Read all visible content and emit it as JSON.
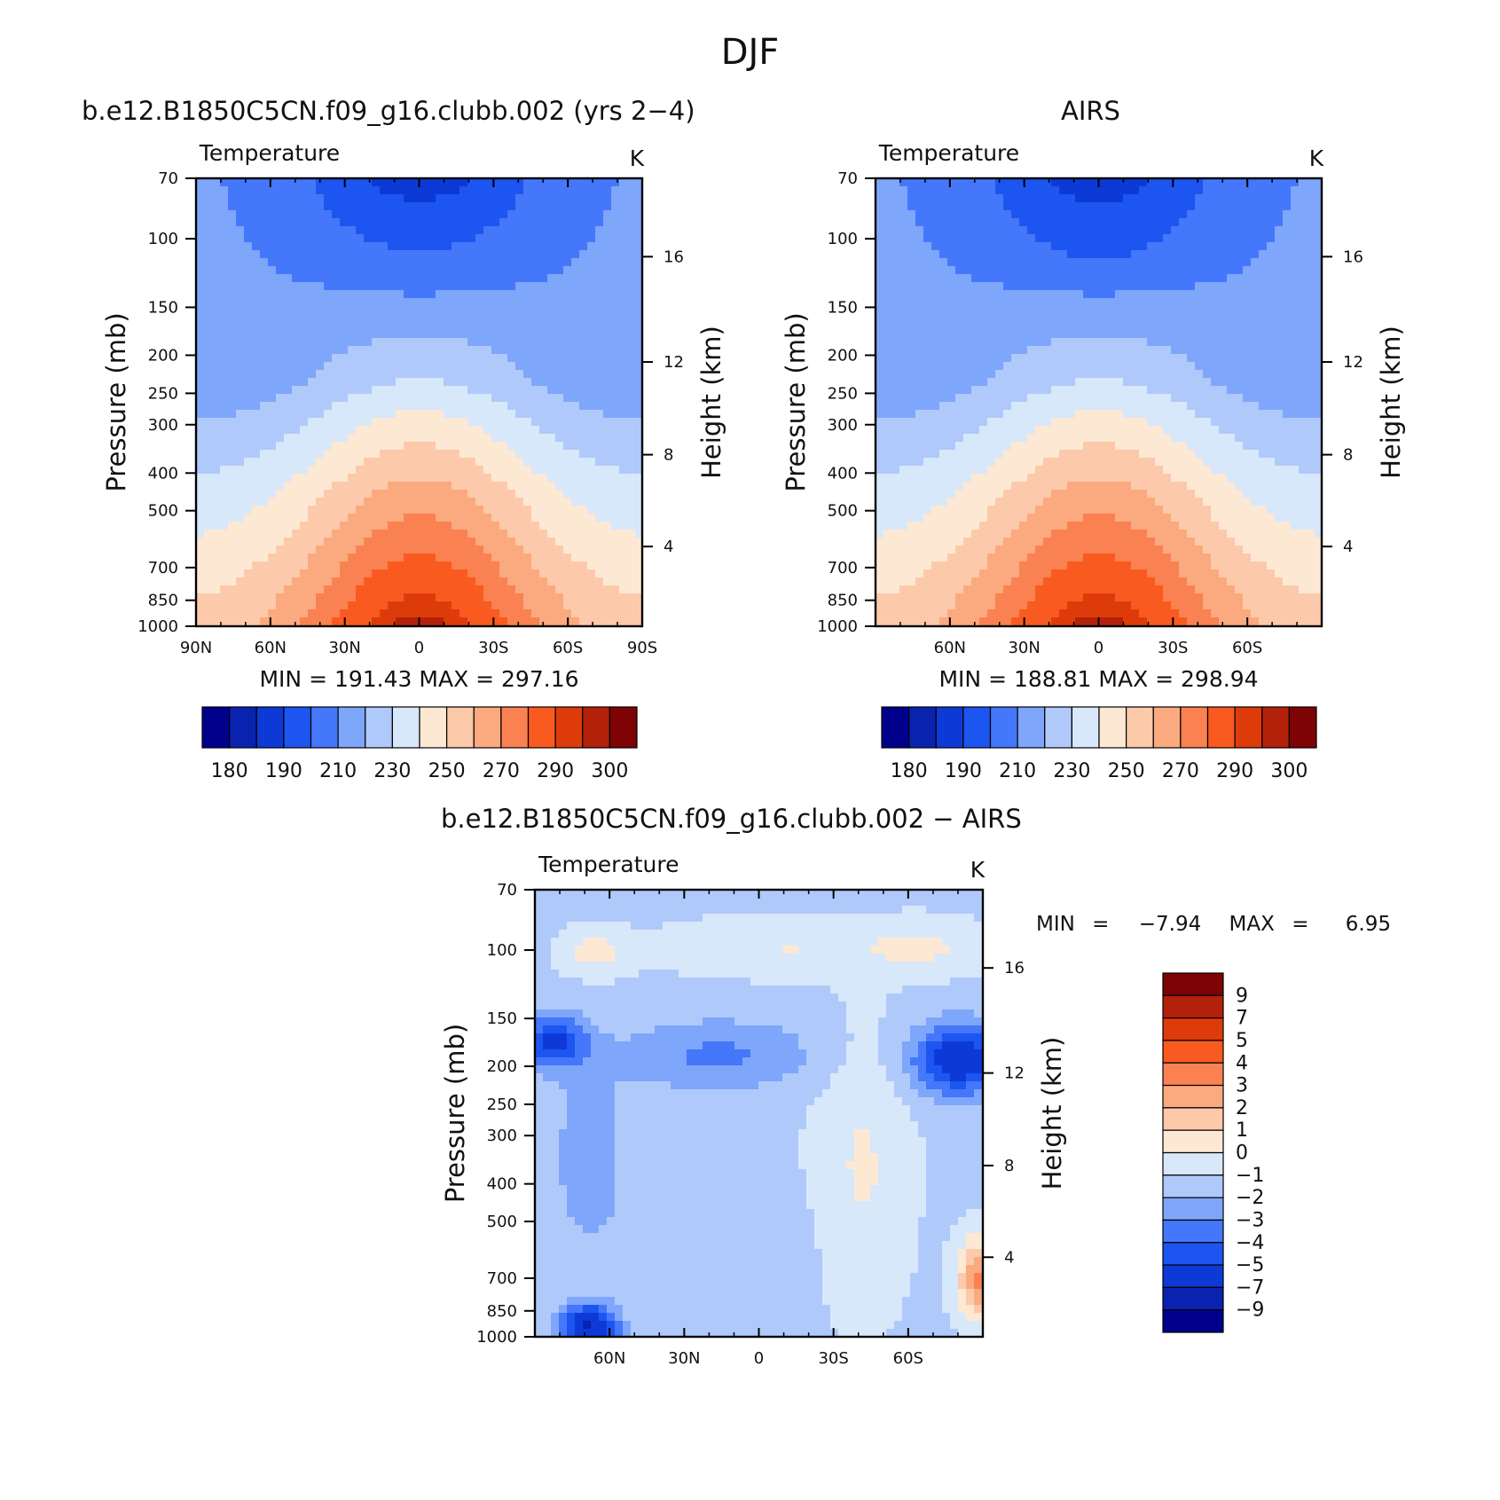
{
  "title": "DJF",
  "panels": [
    {
      "id": "model",
      "title": "b.e12.B1850C5CN.f09_g16.clubb.002 (yrs 2−4)",
      "left_label": "Temperature",
      "right_label": "K",
      "min_label": "MIN",
      "min_value": "191.43",
      "max_label": "MAX",
      "max_value": "297.16"
    },
    {
      "id": "obs",
      "title": "AIRS",
      "left_label": "Temperature",
      "right_label": "K",
      "min_label": "MIN",
      "min_value": "188.81",
      "max_label": "MAX",
      "max_value": "298.94"
    },
    {
      "id": "diff",
      "title": "b.e12.B1850C5CN.f09_g16.clubb.002 − AIRS",
      "left_label": "Temperature",
      "right_label": "K",
      "min_label": "MIN",
      "min_value": "−7.94",
      "max_label": "MAX",
      "max_value": "6.95"
    }
  ],
  "chart_data": [
    {
      "type": "heatmap",
      "panel": "model",
      "title": "b.e12.B1850C5CN.f09_g16.clubb.002 (yrs 2−4)",
      "variable": "Temperature",
      "units": "K",
      "ylabel": "Pressure (mb)",
      "y2label": "Height (km)",
      "x_ticks": [
        "90N",
        "60N",
        "30N",
        "0",
        "30S",
        "60S",
        "90S"
      ],
      "y_ticks": [
        "70",
        "100",
        "150",
        "200",
        "250",
        "300",
        "400",
        "500",
        "700",
        "850",
        "1000"
      ],
      "y2_ticks": [
        "4",
        "8",
        "12",
        "16"
      ],
      "min": 191.43,
      "max": 297.16,
      "levels": [
        180,
        185,
        190,
        200,
        210,
        220,
        230,
        240,
        250,
        260,
        270,
        280,
        290,
        295,
        300
      ],
      "colorbar_labels": [
        "180",
        "190",
        "210",
        "230",
        "250",
        "270",
        "290",
        "300"
      ]
    },
    {
      "type": "heatmap",
      "panel": "obs",
      "title": "AIRS",
      "variable": "Temperature",
      "units": "K",
      "ylabel": "Pressure (mb)",
      "y2label": "Height (km)",
      "x_ticks": [
        "60N",
        "30N",
        "0",
        "30S",
        "60S"
      ],
      "y_ticks": [
        "70",
        "100",
        "150",
        "200",
        "250",
        "300",
        "400",
        "500",
        "700",
        "850",
        "1000"
      ],
      "y2_ticks": [
        "4",
        "8",
        "12",
        "16"
      ],
      "min": 188.81,
      "max": 298.94,
      "levels": [
        180,
        185,
        190,
        200,
        210,
        220,
        230,
        240,
        250,
        260,
        270,
        280,
        290,
        295,
        300
      ],
      "colorbar_labels": [
        "180",
        "190",
        "210",
        "230",
        "250",
        "270",
        "290",
        "300"
      ]
    },
    {
      "type": "heatmap",
      "panel": "diff",
      "title": "b.e12.B1850C5CN.f09_g16.clubb.002 − AIRS",
      "variable": "Temperature",
      "units": "K",
      "ylabel": "Pressure (mb)",
      "y2label": "Height (km)",
      "x_ticks": [
        "60N",
        "30N",
        "0",
        "30S",
        "60S"
      ],
      "y_ticks": [
        "70",
        "100",
        "150",
        "200",
        "250",
        "300",
        "400",
        "500",
        "700",
        "850",
        "1000"
      ],
      "y2_ticks": [
        "4",
        "8",
        "12",
        "16"
      ],
      "min": -7.94,
      "max": 6.95,
      "levels": [
        -9,
        -7,
        -5,
        -4,
        -3,
        -2,
        -1,
        0,
        1,
        2,
        3,
        4,
        5,
        7,
        9
      ],
      "colorbar_labels": [
        "9",
        "7",
        "5",
        "4",
        "3",
        "2",
        "1",
        "0",
        "−1",
        "−2",
        "−3",
        "−4",
        "−5",
        "−7",
        "−9"
      ]
    }
  ],
  "colors": {
    "palette": [
      "#00008c",
      "#0a22b0",
      "#0d3ad6",
      "#1d55f0",
      "#4477fa",
      "#7ea6fb",
      "#b0c9fb",
      "#d8e8fb",
      "#fde8d4",
      "#fcc9ab",
      "#fba97f",
      "#fa8152",
      "#f95a20",
      "#dd3c0a",
      "#b3210a",
      "#7e0305"
    ],
    "diff_palette_top_to_bottom": [
      "#7e0305",
      "#b3210a",
      "#dd3c0a",
      "#f95a20",
      "#fa8152",
      "#fba97f",
      "#fcc9ab",
      "#fde8d4",
      "#d8e8fb",
      "#b0c9fb",
      "#7ea6fb",
      "#4477fa",
      "#1d55f0",
      "#0d3ad6",
      "#0a22b0",
      "#00008c"
    ]
  }
}
